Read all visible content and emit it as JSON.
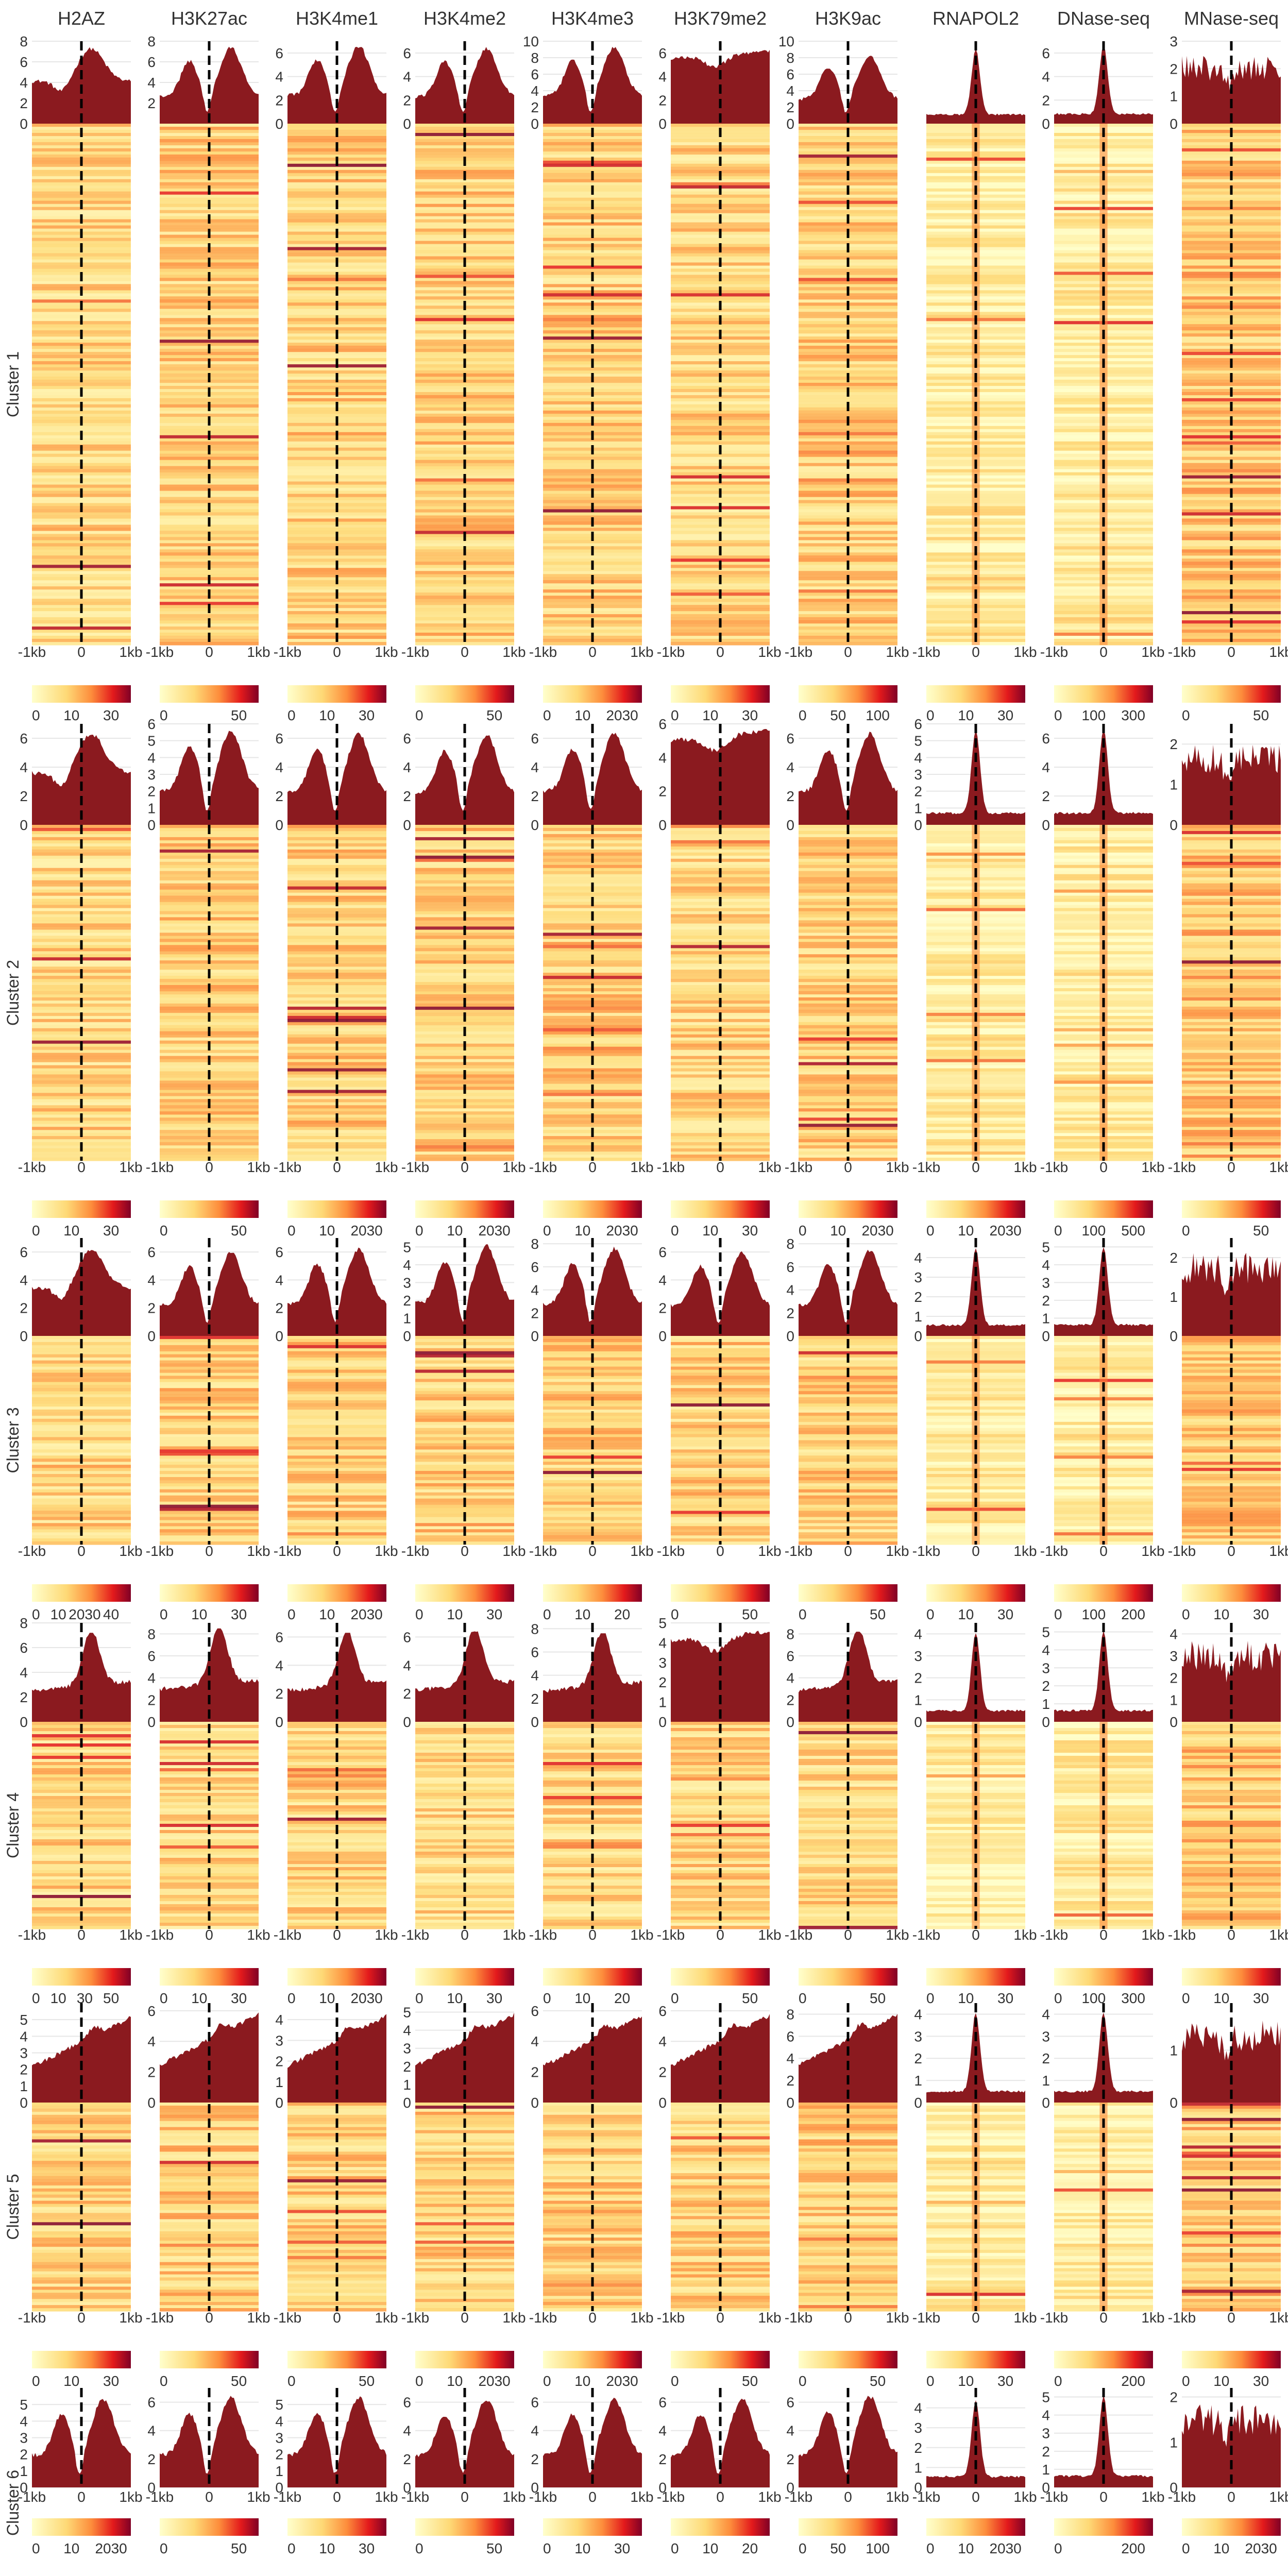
{
  "chart_data": {
    "type": "heatmap",
    "description": "",
    "columns": [
      "H2AZ",
      "H3K27ac",
      "H3K4me1",
      "H3K4me2",
      "H3K4me3",
      "H3K79me2",
      "H3K9ac",
      "RNAPOL2",
      "DNase-seq",
      "MNase-seq"
    ],
    "x_tick_labels": [
      "-1kb",
      "0",
      "1kb"
    ],
    "colors": {
      "profile_fill": "#8b1a1f",
      "heat_low": "#ffffcc",
      "heat_mid": "#fd8d3c",
      "heat_high": "#9e0e14",
      "center_line": "#000000"
    },
    "clusters": [
      {
        "name": "Cluster 1",
        "profiles": [
          {
            "ymax": 8,
            "yticks": [
              0,
              2,
              4,
              6,
              8
            ],
            "shape": "peak",
            "max": 7.5
          },
          {
            "ymax": 8,
            "yticks": [
              2,
              4,
              6,
              8
            ],
            "shape": "dip",
            "max": 7.6
          },
          {
            "ymax": 7,
            "yticks": [
              0,
              2,
              4,
              6
            ],
            "shape": "dip",
            "max": 6.8
          },
          {
            "ymax": 7,
            "yticks": [
              0,
              2,
              4,
              6
            ],
            "shape": "dip",
            "max": 6.6
          },
          {
            "ymax": 10,
            "yticks": [
              0,
              2,
              4,
              6,
              8,
              10
            ],
            "shape": "dip",
            "max": 9.5
          },
          {
            "ymax": 7,
            "yticks": [
              0,
              2,
              4,
              6
            ],
            "shape": "flat",
            "max": 6.5
          },
          {
            "ymax": 10,
            "yticks": [
              0,
              2,
              4,
              6,
              8,
              10
            ],
            "shape": "dip",
            "max": 8.5
          },
          {
            "ymax": 7,
            "yticks": [],
            "shape": "spike",
            "max": 6.5
          },
          {
            "ymax": 7,
            "yticks": [
              0,
              2,
              4,
              6
            ],
            "shape": "spike",
            "max": 6.8
          },
          {
            "ymax": 3,
            "yticks": [
              0,
              1,
              2,
              3
            ],
            "shape": "noisy",
            "max": 2.7
          }
        ],
        "legends": [
          [
            "0",
            "10",
            "30"
          ],
          [
            "0",
            "50"
          ],
          [
            "0",
            "10",
            "30"
          ],
          [
            "0",
            "50"
          ],
          [
            "0",
            "10",
            "2030"
          ],
          [
            "0",
            "10",
            "30"
          ],
          [
            "0",
            "50",
            "100"
          ],
          [
            "0",
            "10",
            "30"
          ],
          [
            "0",
            "100",
            "300"
          ],
          [
            "0",
            "50"
          ]
        ]
      },
      {
        "name": "Cluster 2",
        "profiles": [
          {
            "ymax": 7,
            "yticks": [
              0,
              2,
              4,
              6
            ],
            "shape": "peak",
            "max": 6.5
          },
          {
            "ymax": 6,
            "yticks": [
              0,
              1,
              2,
              3,
              4,
              5,
              6
            ],
            "shape": "dip",
            "max": 5.8
          },
          {
            "ymax": 7,
            "yticks": [
              0,
              2,
              4,
              6
            ],
            "shape": "dip",
            "max": 6.5
          },
          {
            "ymax": 7,
            "yticks": [
              0,
              2,
              4,
              6
            ],
            "shape": "dip",
            "max": 6.4
          },
          {
            "ymax": 7,
            "yticks": [
              0,
              2,
              4,
              6
            ],
            "shape": "dip",
            "max": 6.6
          },
          {
            "ymax": 6,
            "yticks": [
              0,
              2,
              4,
              6
            ],
            "shape": "flat",
            "max": 5.9
          },
          {
            "ymax": 7,
            "yticks": [
              0,
              2,
              4,
              6
            ],
            "shape": "dip",
            "max": 6.5
          },
          {
            "ymax": 6,
            "yticks": [
              0,
              1,
              2,
              3,
              4,
              5,
              6
            ],
            "shape": "spike",
            "max": 5.8
          },
          {
            "ymax": 7,
            "yticks": [
              0,
              2,
              4,
              6
            ],
            "shape": "spike",
            "max": 6.8
          },
          {
            "ymax": 2.5,
            "yticks": [
              0,
              1,
              2
            ],
            "shape": "noisy",
            "max": 2.2
          }
        ],
        "legends": [
          [
            "0",
            "10",
            "30"
          ],
          [
            "0",
            "50"
          ],
          [
            "0",
            "10",
            "2030"
          ],
          [
            "0",
            "10",
            "2030"
          ],
          [
            "0",
            "10",
            "2030"
          ],
          [
            "0",
            "10",
            "30"
          ],
          [
            "0",
            "10",
            "2030"
          ],
          [
            "0",
            "10",
            "2030"
          ],
          [
            "0",
            "100",
            "500"
          ],
          [
            "0",
            "50"
          ]
        ]
      },
      {
        "name": "Cluster 3",
        "profiles": [
          {
            "ymax": 7,
            "yticks": [
              0,
              2,
              4,
              6
            ],
            "shape": "peak",
            "max": 6.3
          },
          {
            "ymax": 7,
            "yticks": [
              0,
              2,
              4,
              6
            ],
            "shape": "dip",
            "max": 6.2
          },
          {
            "ymax": 7,
            "yticks": [
              0,
              2,
              4,
              6
            ],
            "shape": "dip",
            "max": 6.4
          },
          {
            "ymax": 5.5,
            "yticks": [
              0,
              1,
              2,
              3,
              4,
              5
            ],
            "shape": "dip",
            "max": 5.2
          },
          {
            "ymax": 8.5,
            "yticks": [
              0,
              2,
              4,
              6,
              8
            ],
            "shape": "dip",
            "max": 7.8
          },
          {
            "ymax": 7,
            "yticks": [
              0,
              2,
              4,
              6
            ],
            "shape": "dip",
            "max": 6.2
          },
          {
            "ymax": 8.5,
            "yticks": [
              0,
              2,
              4,
              6,
              8
            ],
            "shape": "dip",
            "max": 7.7
          },
          {
            "ymax": 5,
            "yticks": [
              0,
              1,
              2,
              3,
              4
            ],
            "shape": "spike",
            "max": 4.6
          },
          {
            "ymax": 5.5,
            "yticks": [
              0,
              1,
              2,
              3,
              4,
              5
            ],
            "shape": "spike",
            "max": 5.2
          },
          {
            "ymax": 2.5,
            "yticks": [
              0,
              1,
              2
            ],
            "shape": "noisy",
            "max": 2.3
          }
        ],
        "legends": [
          [
            "0",
            "10",
            "2030",
            "40"
          ],
          [
            "0",
            "10",
            "30"
          ],
          [
            "0",
            "10",
            "2030"
          ],
          [
            "0",
            "10",
            "30"
          ],
          [
            "0",
            "10",
            "20"
          ],
          [
            "0",
            "50"
          ],
          [
            "0",
            "50"
          ],
          [
            "0",
            "10",
            "30"
          ],
          [
            "0",
            "100",
            "200"
          ],
          [
            "0",
            "10",
            "30"
          ]
        ]
      },
      {
        "name": "Cluster 4",
        "profiles": [
          {
            "ymax": 8,
            "yticks": [
              0,
              2,
              4,
              6,
              8
            ],
            "shape": "rightpeak",
            "max": 7.2
          },
          {
            "ymax": 9,
            "yticks": [
              0,
              2,
              4,
              6,
              8
            ],
            "shape": "rightpeak",
            "max": 8.5
          },
          {
            "ymax": 7,
            "yticks": [
              0,
              2,
              4,
              6
            ],
            "shape": "rightpeak",
            "max": 6.3
          },
          {
            "ymax": 7,
            "yticks": [
              0,
              2,
              4,
              6
            ],
            "shape": "rightpeak",
            "max": 6.4
          },
          {
            "ymax": 8.5,
            "yticks": [
              0,
              2,
              4,
              6,
              8
            ],
            "shape": "rightpeak",
            "max": 7.6
          },
          {
            "ymax": 5,
            "yticks": [
              0,
              1,
              2,
              3,
              4,
              5
            ],
            "shape": "flat",
            "max": 4.8
          },
          {
            "ymax": 9,
            "yticks": [
              0,
              2,
              4,
              6,
              8
            ],
            "shape": "rightpeak",
            "max": 8.2
          },
          {
            "ymax": 4.5,
            "yticks": [
              0,
              1,
              2,
              3,
              4
            ],
            "shape": "spike",
            "max": 4.2
          },
          {
            "ymax": 5.5,
            "yticks": [
              0,
              1,
              2,
              3,
              4,
              5
            ],
            "shape": "spike",
            "max": 5.2
          },
          {
            "ymax": 4.5,
            "yticks": [
              0,
              1,
              2,
              3,
              4
            ],
            "shape": "noisy",
            "max": 4.0
          }
        ],
        "legends": [
          [
            "0",
            "10",
            "30",
            "50"
          ],
          [
            "0",
            "10",
            "30"
          ],
          [
            "0",
            "10",
            "2030"
          ],
          [
            "0",
            "10",
            "30"
          ],
          [
            "0",
            "10",
            "20"
          ],
          [
            "0",
            "50"
          ],
          [
            "0",
            "50"
          ],
          [
            "0",
            "10",
            "30"
          ],
          [
            "0",
            "100",
            "300"
          ],
          [
            "0",
            "10",
            "30"
          ]
        ]
      },
      {
        "name": "Cluster 5",
        "profiles": [
          {
            "ymax": 6,
            "yticks": [
              0,
              1,
              2,
              3,
              4,
              5
            ],
            "shape": "rising",
            "max": 5.4
          },
          {
            "ymax": 6.5,
            "yticks": [
              0,
              2,
              4,
              6
            ],
            "shape": "rising",
            "max": 6.1
          },
          {
            "ymax": 4.8,
            "yticks": [
              0,
              1,
              2,
              3,
              4
            ],
            "shape": "rising",
            "max": 4.4
          },
          {
            "ymax": 5.5,
            "yticks": [
              0,
              1,
              2,
              3,
              4,
              5
            ],
            "shape": "rising",
            "max": 5.1
          },
          {
            "ymax": 6.5,
            "yticks": [
              0,
              2,
              4,
              6
            ],
            "shape": "rising",
            "max": 6.0
          },
          {
            "ymax": 6.5,
            "yticks": [
              0,
              2,
              4,
              6
            ],
            "shape": "rising",
            "max": 6.0
          },
          {
            "ymax": 9,
            "yticks": [
              0,
              2,
              4,
              6,
              8
            ],
            "shape": "rising",
            "max": 8.4
          },
          {
            "ymax": 4.5,
            "yticks": [
              0,
              1,
              2,
              3,
              4
            ],
            "shape": "spike",
            "max": 4.2
          },
          {
            "ymax": 4.5,
            "yticks": [
              0,
              1,
              2,
              3,
              4
            ],
            "shape": "spike",
            "max": 4.2
          },
          {
            "ymax": 1.9,
            "yticks": [
              0,
              1
            ],
            "shape": "noisy",
            "max": 1.7
          }
        ],
        "legends": [
          [
            "0",
            "10",
            "30"
          ],
          [
            "0",
            "50"
          ],
          [
            "0",
            "50"
          ],
          [
            "0",
            "10",
            "2030"
          ],
          [
            "0",
            "10",
            "2030"
          ],
          [
            "0",
            "50"
          ],
          [
            "0",
            "50"
          ],
          [
            "0",
            "10",
            "30"
          ],
          [
            "0",
            "200"
          ],
          [
            "0",
            "10",
            "30"
          ]
        ]
      },
      {
        "name": "Cluster 6",
        "profiles": [
          {
            "ymax": 6,
            "yticks": [
              0,
              1,
              2,
              3,
              4,
              5
            ],
            "shape": "dip",
            "max": 5.5
          },
          {
            "ymax": 7,
            "yticks": [
              0,
              2,
              4,
              6
            ],
            "shape": "dip",
            "max": 6.5
          },
          {
            "ymax": 6,
            "yticks": [
              0,
              1,
              2,
              3,
              4,
              5
            ],
            "shape": "dip",
            "max": 5.6
          },
          {
            "ymax": 7,
            "yticks": [
              0,
              2,
              4,
              6
            ],
            "shape": "dip",
            "max": 6.4
          },
          {
            "ymax": 7,
            "yticks": [
              0,
              2,
              4,
              6
            ],
            "shape": "dip",
            "max": 6.4
          },
          {
            "ymax": 7,
            "yticks": [
              0,
              2,
              4,
              6
            ],
            "shape": "dip",
            "max": 6.4
          },
          {
            "ymax": 7,
            "yticks": [
              0,
              2,
              4,
              6
            ],
            "shape": "dip",
            "max": 6.6
          },
          {
            "ymax": 5,
            "yticks": [
              0,
              1,
              2,
              3,
              4
            ],
            "shape": "spike",
            "max": 4.5
          },
          {
            "ymax": 5.5,
            "yticks": [
              0,
              1,
              2,
              3,
              4,
              5
            ],
            "shape": "spike",
            "max": 5.2
          },
          {
            "ymax": 2.2,
            "yticks": [
              0,
              1,
              2
            ],
            "shape": "noisy",
            "max": 2.0
          }
        ],
        "legends": [
          [
            "0",
            "10",
            "2030"
          ],
          [
            "0",
            "50"
          ],
          [
            "0",
            "10",
            "30"
          ],
          [
            "0",
            "50"
          ],
          [
            "0",
            "10",
            "30"
          ],
          [
            "0",
            "10",
            "20"
          ],
          [
            "0",
            "50",
            "100"
          ],
          [
            "0",
            "10",
            "2030"
          ],
          [
            "0",
            "200"
          ],
          [
            "0",
            "10",
            "2030"
          ]
        ]
      }
    ]
  }
}
